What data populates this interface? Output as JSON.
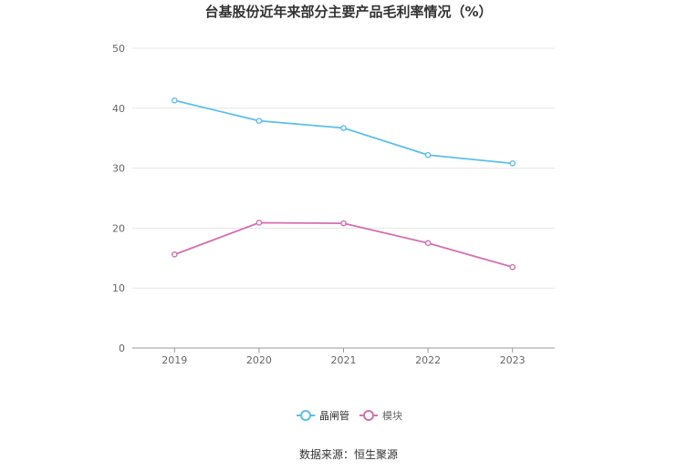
{
  "chart_data": {
    "type": "line",
    "title": "台基股份近年来部分主要产品毛利率情况（%）",
    "categories": [
      "2019",
      "2020",
      "2021",
      "2022",
      "2023"
    ],
    "series": [
      {
        "name": "晶闸管",
        "values": [
          41.3,
          37.9,
          36.7,
          32.2,
          30.8
        ],
        "color": "#5bc0eb"
      },
      {
        "name": "模块",
        "values": [
          15.6,
          20.9,
          20.8,
          17.5,
          13.5
        ],
        "color": "#d66fb2"
      }
    ],
    "ylim": [
      0,
      50
    ],
    "yticks": [
      0,
      10,
      20,
      30,
      40,
      50
    ],
    "grid": true,
    "legend_position": "bottom-center",
    "xlabel": "",
    "ylabel": ""
  },
  "source": "数据来源：恒生聚源"
}
